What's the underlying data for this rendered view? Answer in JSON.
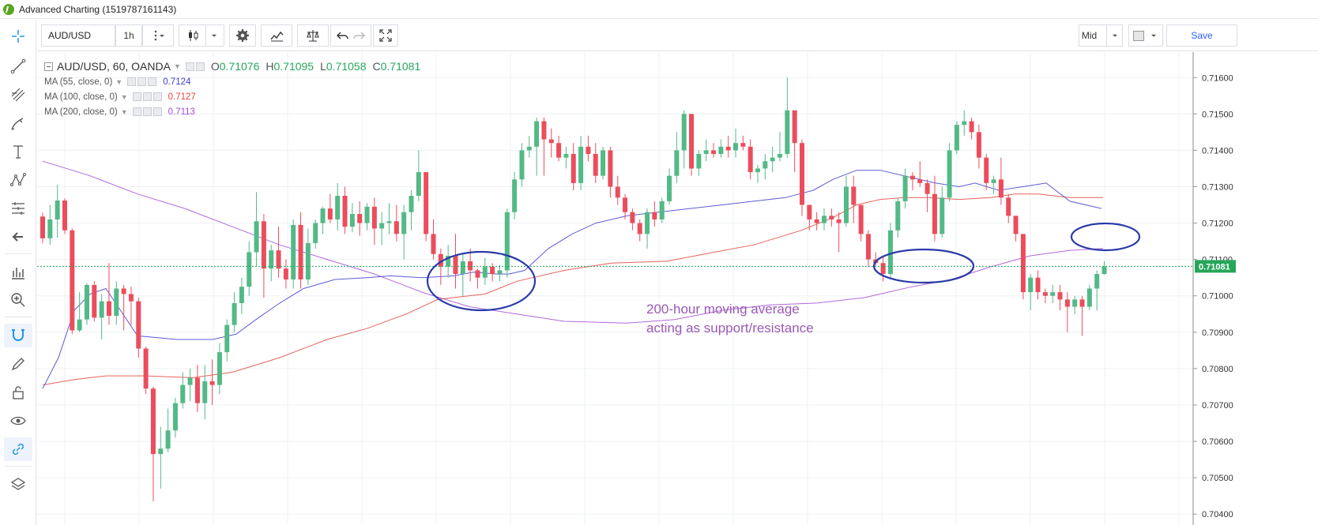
{
  "window": {
    "title": "Advanced Charting (1519787161143)"
  },
  "toolbar": {
    "symbol": "AUD/USD",
    "interval": "1h",
    "price_source": "Mid",
    "save_label": "Save"
  },
  "legend": {
    "title": "AUD/USD, 60, OANDA",
    "open_label": "O",
    "open": "0.71076",
    "high_label": "H",
    "high": "0.71095",
    "low_label": "L",
    "low": "0.71058",
    "close_label": "C",
    "close": "0.71081",
    "ma": [
      {
        "label": "MA (55, close, 0)",
        "value": "0.7124",
        "color": "#3f3fcf"
      },
      {
        "label": "MA (100, close, 0)",
        "value": "0.7127",
        "color": "#e0473f"
      },
      {
        "label": "MA (200, close, 0)",
        "value": "0.7113",
        "color": "#a44fd6"
      }
    ]
  },
  "annotation": {
    "line1": "200-hour moving average",
    "line2": "acting as support/resistance"
  },
  "colors": {
    "up": "#53b987",
    "down": "#eb4d5c",
    "ma55": "#3f3fcf",
    "ma100": "#e0473f",
    "ma200": "#a44fd6",
    "ellipse": "#2a3aa8",
    "price_tag": "#26a65b"
  },
  "chart_data": {
    "type": "candlestick",
    "symbol": "AUD/USD",
    "interval": "60",
    "source": "OANDA",
    "ylim": [
      0.7037,
      0.7167
    ],
    "y_ticks": [
      "0.71600",
      "0.71500",
      "0.71400",
      "0.71300",
      "0.71200",
      "0.71100",
      "0.71000",
      "0.70900",
      "0.70800",
      "0.70700",
      "0.70600",
      "0.70500",
      "0.70400"
    ],
    "last_price": "0.71081",
    "candles": [
      [
        0.71218,
        0.71228,
        0.71145,
        0.71158
      ],
      [
        0.71158,
        0.7125,
        0.7114,
        0.7121
      ],
      [
        0.7121,
        0.71305,
        0.7116,
        0.71262
      ],
      [
        0.71262,
        0.71268,
        0.7117,
        0.7118
      ],
      [
        0.7118,
        0.71185,
        0.70895,
        0.70905
      ],
      [
        0.70905,
        0.7101,
        0.709,
        0.70935
      ],
      [
        0.70935,
        0.71035,
        0.7092,
        0.7103
      ],
      [
        0.7103,
        0.7104,
        0.7093,
        0.7094
      ],
      [
        0.7094,
        0.71005,
        0.7088,
        0.70985
      ],
      [
        0.70985,
        0.7109,
        0.7092,
        0.70945
      ],
      [
        0.70945,
        0.7104,
        0.7092,
        0.7102
      ],
      [
        0.7102,
        0.7103,
        0.70905,
        0.71005
      ],
      [
        0.71005,
        0.71025,
        0.7092,
        0.70985
      ],
      [
        0.70985,
        0.70995,
        0.7083,
        0.70855
      ],
      [
        0.70855,
        0.7086,
        0.7073,
        0.70745
      ],
      [
        0.70745,
        0.7075,
        0.70435,
        0.70565
      ],
      [
        0.70565,
        0.7064,
        0.7047,
        0.7058
      ],
      [
        0.7058,
        0.7069,
        0.7057,
        0.7063
      ],
      [
        0.7063,
        0.7072,
        0.7061,
        0.70705
      ],
      [
        0.70705,
        0.7079,
        0.7069,
        0.70755
      ],
      [
        0.70755,
        0.708,
        0.7071,
        0.70775
      ],
      [
        0.70775,
        0.7081,
        0.7068,
        0.70705
      ],
      [
        0.70705,
        0.7081,
        0.7066,
        0.70765
      ],
      [
        0.70765,
        0.70825,
        0.707,
        0.70755
      ],
      [
        0.70755,
        0.7087,
        0.7073,
        0.70845
      ],
      [
        0.70845,
        0.70935,
        0.7082,
        0.7092
      ],
      [
        0.7092,
        0.7101,
        0.709,
        0.7098
      ],
      [
        0.7098,
        0.7105,
        0.7095,
        0.71025
      ],
      [
        0.71025,
        0.7115,
        0.71,
        0.7112
      ],
      [
        0.7112,
        0.71285,
        0.7108,
        0.71205
      ],
      [
        0.71205,
        0.71225,
        0.70995,
        0.71075
      ],
      [
        0.71075,
        0.7114,
        0.7104,
        0.71125
      ],
      [
        0.71125,
        0.7119,
        0.7105,
        0.71075
      ],
      [
        0.71075,
        0.711,
        0.7102,
        0.71045
      ],
      [
        0.71045,
        0.7121,
        0.7102,
        0.71195
      ],
      [
        0.71195,
        0.7123,
        0.7102,
        0.71045
      ],
      [
        0.71045,
        0.71185,
        0.7103,
        0.71145
      ],
      [
        0.71145,
        0.7121,
        0.7113,
        0.712
      ],
      [
        0.712,
        0.71245,
        0.7117,
        0.7124
      ],
      [
        0.7124,
        0.7128,
        0.712,
        0.7121
      ],
      [
        0.7121,
        0.7131,
        0.7118,
        0.71275
      ],
      [
        0.71275,
        0.713,
        0.7117,
        0.7119
      ],
      [
        0.7119,
        0.71255,
        0.71175,
        0.71225
      ],
      [
        0.71225,
        0.7126,
        0.71165,
        0.712
      ],
      [
        0.712,
        0.71255,
        0.7118,
        0.71245
      ],
      [
        0.71245,
        0.7127,
        0.7114,
        0.71185
      ],
      [
        0.71185,
        0.7123,
        0.7114,
        0.712
      ],
      [
        0.712,
        0.71255,
        0.7117,
        0.71205
      ],
      [
        0.71205,
        0.7125,
        0.7115,
        0.7117
      ],
      [
        0.7117,
        0.7125,
        0.711,
        0.7123
      ],
      [
        0.7123,
        0.7129,
        0.7118,
        0.71275
      ],
      [
        0.71275,
        0.714,
        0.7126,
        0.7134
      ],
      [
        0.7134,
        0.7134,
        0.7115,
        0.7117
      ],
      [
        0.7117,
        0.7121,
        0.711,
        0.71115
      ],
      [
        0.71115,
        0.7113,
        0.7103,
        0.7108
      ],
      [
        0.7108,
        0.7114,
        0.7105,
        0.7111
      ],
      [
        0.7111,
        0.7117,
        0.7102,
        0.7106
      ],
      [
        0.7106,
        0.71115,
        0.71,
        0.71095
      ],
      [
        0.71095,
        0.7113,
        0.7104,
        0.7107
      ],
      [
        0.7107,
        0.71075,
        0.7102,
        0.7105
      ],
      [
        0.7105,
        0.71105,
        0.7103,
        0.7108
      ],
      [
        0.7108,
        0.7109,
        0.7104,
        0.7106
      ],
      [
        0.7106,
        0.71085,
        0.7104,
        0.7107
      ],
      [
        0.7107,
        0.7124,
        0.7105,
        0.7123
      ],
      [
        0.7123,
        0.7134,
        0.7121,
        0.7132
      ],
      [
        0.7132,
        0.7142,
        0.713,
        0.714
      ],
      [
        0.714,
        0.7144,
        0.7138,
        0.7141
      ],
      [
        0.7141,
        0.7149,
        0.7133,
        0.7148
      ],
      [
        0.7148,
        0.7149,
        0.7133,
        0.7143
      ],
      [
        0.7143,
        0.7146,
        0.7138,
        0.7142
      ],
      [
        0.7142,
        0.7144,
        0.7137,
        0.7138
      ],
      [
        0.7138,
        0.7141,
        0.7135,
        0.7139
      ],
      [
        0.7139,
        0.7142,
        0.7129,
        0.7131
      ],
      [
        0.7131,
        0.7144,
        0.7129,
        0.7141
      ],
      [
        0.7141,
        0.7144,
        0.7137,
        0.7139
      ],
      [
        0.7139,
        0.7142,
        0.7131,
        0.7133
      ],
      [
        0.7133,
        0.7141,
        0.7132,
        0.714
      ],
      [
        0.714,
        0.7141,
        0.7127,
        0.713
      ],
      [
        0.713,
        0.7133,
        0.7125,
        0.7127
      ],
      [
        0.7127,
        0.7128,
        0.7121,
        0.7123
      ],
      [
        0.7123,
        0.7124,
        0.7118,
        0.712
      ],
      [
        0.712,
        0.7121,
        0.7115,
        0.7117
      ],
      [
        0.7117,
        0.7124,
        0.7113,
        0.7123
      ],
      [
        0.7123,
        0.7126,
        0.7119,
        0.7121
      ],
      [
        0.7121,
        0.7127,
        0.712,
        0.7126
      ],
      [
        0.7126,
        0.7135,
        0.7125,
        0.7133
      ],
      [
        0.7133,
        0.7145,
        0.7131,
        0.714
      ],
      [
        0.714,
        0.7151,
        0.7135,
        0.715
      ],
      [
        0.715,
        0.715,
        0.7133,
        0.7135
      ],
      [
        0.7135,
        0.714,
        0.7133,
        0.7139
      ],
      [
        0.7139,
        0.7143,
        0.7137,
        0.714
      ],
      [
        0.714,
        0.7142,
        0.7138,
        0.7139
      ],
      [
        0.7139,
        0.7143,
        0.7138,
        0.7141
      ],
      [
        0.7141,
        0.7144,
        0.7138,
        0.714
      ],
      [
        0.714,
        0.7146,
        0.7138,
        0.7142
      ],
      [
        0.7142,
        0.7144,
        0.714,
        0.7141
      ],
      [
        0.7141,
        0.7143,
        0.7132,
        0.7134
      ],
      [
        0.7134,
        0.7136,
        0.7131,
        0.7135
      ],
      [
        0.7135,
        0.7139,
        0.7132,
        0.7137
      ],
      [
        0.7137,
        0.7141,
        0.7134,
        0.7138
      ],
      [
        0.7138,
        0.7145,
        0.7137,
        0.7139
      ],
      [
        0.7139,
        0.716,
        0.7138,
        0.7151
      ],
      [
        0.7151,
        0.7151,
        0.7134,
        0.7142
      ],
      [
        0.7142,
        0.7143,
        0.7122,
        0.7125
      ],
      [
        0.7125,
        0.7125,
        0.7118,
        0.7121
      ],
      [
        0.7121,
        0.7123,
        0.7118,
        0.712
      ],
      [
        0.712,
        0.7124,
        0.7118,
        0.7122
      ],
      [
        0.7122,
        0.7124,
        0.7119,
        0.7121
      ],
      [
        0.7121,
        0.7123,
        0.7112,
        0.712
      ],
      [
        0.712,
        0.7133,
        0.7119,
        0.713
      ],
      [
        0.713,
        0.7133,
        0.712,
        0.7125
      ],
      [
        0.7125,
        0.7125,
        0.7115,
        0.7117
      ],
      [
        0.7117,
        0.7118,
        0.7108,
        0.711
      ],
      [
        0.711,
        0.7112,
        0.7108,
        0.7109
      ],
      [
        0.7109,
        0.7111,
        0.7104,
        0.7106
      ],
      [
        0.7106,
        0.712,
        0.7105,
        0.7118
      ],
      [
        0.7118,
        0.7127,
        0.7116,
        0.7126
      ],
      [
        0.7126,
        0.7135,
        0.7124,
        0.7133
      ],
      [
        0.7133,
        0.7134,
        0.7129,
        0.7132
      ],
      [
        0.7132,
        0.7137,
        0.713,
        0.7131
      ],
      [
        0.7131,
        0.7132,
        0.7123,
        0.7128
      ],
      [
        0.7128,
        0.7133,
        0.7115,
        0.7117
      ],
      [
        0.7117,
        0.713,
        0.7116,
        0.7127
      ],
      [
        0.7127,
        0.7142,
        0.7126,
        0.714
      ],
      [
        0.714,
        0.7148,
        0.7139,
        0.7147
      ],
      [
        0.7147,
        0.7151,
        0.7144,
        0.7148
      ],
      [
        0.7148,
        0.7149,
        0.7143,
        0.7145
      ],
      [
        0.7145,
        0.7147,
        0.7135,
        0.7138
      ],
      [
        0.7138,
        0.7139,
        0.7129,
        0.7131
      ],
      [
        0.7131,
        0.7133,
        0.7128,
        0.7132
      ],
      [
        0.7132,
        0.7138,
        0.7125,
        0.7127
      ],
      [
        0.7127,
        0.7128,
        0.712,
        0.7122
      ],
      [
        0.7122,
        0.7122,
        0.7115,
        0.7117
      ],
      [
        0.7117,
        0.7117,
        0.7099,
        0.7101
      ],
      [
        0.7101,
        0.7106,
        0.7096,
        0.7105
      ],
      [
        0.7105,
        0.7107,
        0.7099,
        0.7101
      ],
      [
        0.7101,
        0.7102,
        0.7098,
        0.71
      ],
      [
        0.71,
        0.7103,
        0.7098,
        0.7101
      ],
      [
        0.7101,
        0.7103,
        0.7096,
        0.7099
      ],
      [
        0.7099,
        0.7101,
        0.709,
        0.7097
      ],
      [
        0.7097,
        0.71,
        0.7095,
        0.7099
      ],
      [
        0.7099,
        0.71,
        0.7089,
        0.7097
      ],
      [
        0.7097,
        0.7103,
        0.7096,
        0.7102
      ],
      [
        0.7102,
        0.7107,
        0.7096,
        0.7106
      ],
      [
        0.7106,
        0.71095,
        0.71058,
        0.71081
      ]
    ],
    "ma55": [
      [
        0,
        0.70745
      ],
      [
        20,
        0.7083
      ],
      [
        40,
        0.7096
      ],
      [
        60,
        0.71005
      ],
      [
        80,
        0.7102
      ],
      [
        120,
        0.7089
      ],
      [
        170,
        0.7088
      ],
      [
        215,
        0.7088
      ],
      [
        245,
        0.70895
      ],
      [
        270,
        0.70935
      ],
      [
        300,
        0.7098
      ],
      [
        330,
        0.7102
      ],
      [
        370,
        0.71045
      ],
      [
        410,
        0.7105
      ],
      [
        440,
        0.71055
      ],
      [
        480,
        0.7105
      ],
      [
        520,
        0.71055
      ],
      [
        545,
        0.71065
      ],
      [
        575,
        0.7106
      ],
      [
        590,
        0.7106
      ],
      [
        610,
        0.7107
      ],
      [
        640,
        0.7113
      ],
      [
        670,
        0.7117
      ],
      [
        700,
        0.712
      ],
      [
        740,
        0.7122
      ],
      [
        800,
        0.71235
      ],
      [
        860,
        0.7125
      ],
      [
        900,
        0.7126
      ],
      [
        940,
        0.7127
      ],
      [
        975,
        0.7129
      ],
      [
        1000,
        0.7132
      ],
      [
        1030,
        0.71345
      ],
      [
        1060,
        0.71345
      ],
      [
        1090,
        0.7133
      ],
      [
        1130,
        0.7131
      ],
      [
        1160,
        0.713
      ],
      [
        1180,
        0.7131
      ],
      [
        1210,
        0.7129
      ],
      [
        1240,
        0.713
      ],
      [
        1270,
        0.7131
      ],
      [
        1300,
        0.7126
      ],
      [
        1340,
        0.7124
      ]
    ],
    "ma100": [
      [
        0,
        0.70755
      ],
      [
        40,
        0.7077
      ],
      [
        80,
        0.7078
      ],
      [
        130,
        0.7078
      ],
      [
        190,
        0.70775
      ],
      [
        240,
        0.7079
      ],
      [
        300,
        0.7083
      ],
      [
        360,
        0.7088
      ],
      [
        410,
        0.7091
      ],
      [
        460,
        0.7095
      ],
      [
        500,
        0.7099
      ],
      [
        560,
        0.71005
      ],
      [
        600,
        0.7104
      ],
      [
        660,
        0.7107
      ],
      [
        720,
        0.7109
      ],
      [
        790,
        0.71095
      ],
      [
        850,
        0.7112
      ],
      [
        900,
        0.7114
      ],
      [
        960,
        0.7118
      ],
      [
        1000,
        0.71215
      ],
      [
        1030,
        0.7125
      ],
      [
        1060,
        0.71265
      ],
      [
        1090,
        0.7127
      ],
      [
        1120,
        0.7127
      ],
      [
        1160,
        0.71265
      ],
      [
        1200,
        0.7127
      ],
      [
        1230,
        0.7128
      ],
      [
        1260,
        0.7128
      ],
      [
        1300,
        0.7127
      ],
      [
        1342,
        0.7127
      ]
    ],
    "ma200": [
      [
        0,
        0.7137
      ],
      [
        60,
        0.7133
      ],
      [
        120,
        0.7128
      ],
      [
        180,
        0.7124
      ],
      [
        240,
        0.7119
      ],
      [
        300,
        0.7114
      ],
      [
        360,
        0.711
      ],
      [
        420,
        0.7106
      ],
      [
        480,
        0.7101
      ],
      [
        540,
        0.7097
      ],
      [
        600,
        0.7095
      ],
      [
        660,
        0.7093
      ],
      [
        740,
        0.70925
      ],
      [
        800,
        0.70935
      ],
      [
        860,
        0.7096
      ],
      [
        920,
        0.70975
      ],
      [
        980,
        0.7098
      ],
      [
        1040,
        0.70995
      ],
      [
        1100,
        0.71025
      ],
      [
        1150,
        0.71045
      ],
      [
        1200,
        0.7108
      ],
      [
        1250,
        0.7111
      ],
      [
        1300,
        0.71125
      ],
      [
        1342,
        0.7113
      ]
    ]
  }
}
